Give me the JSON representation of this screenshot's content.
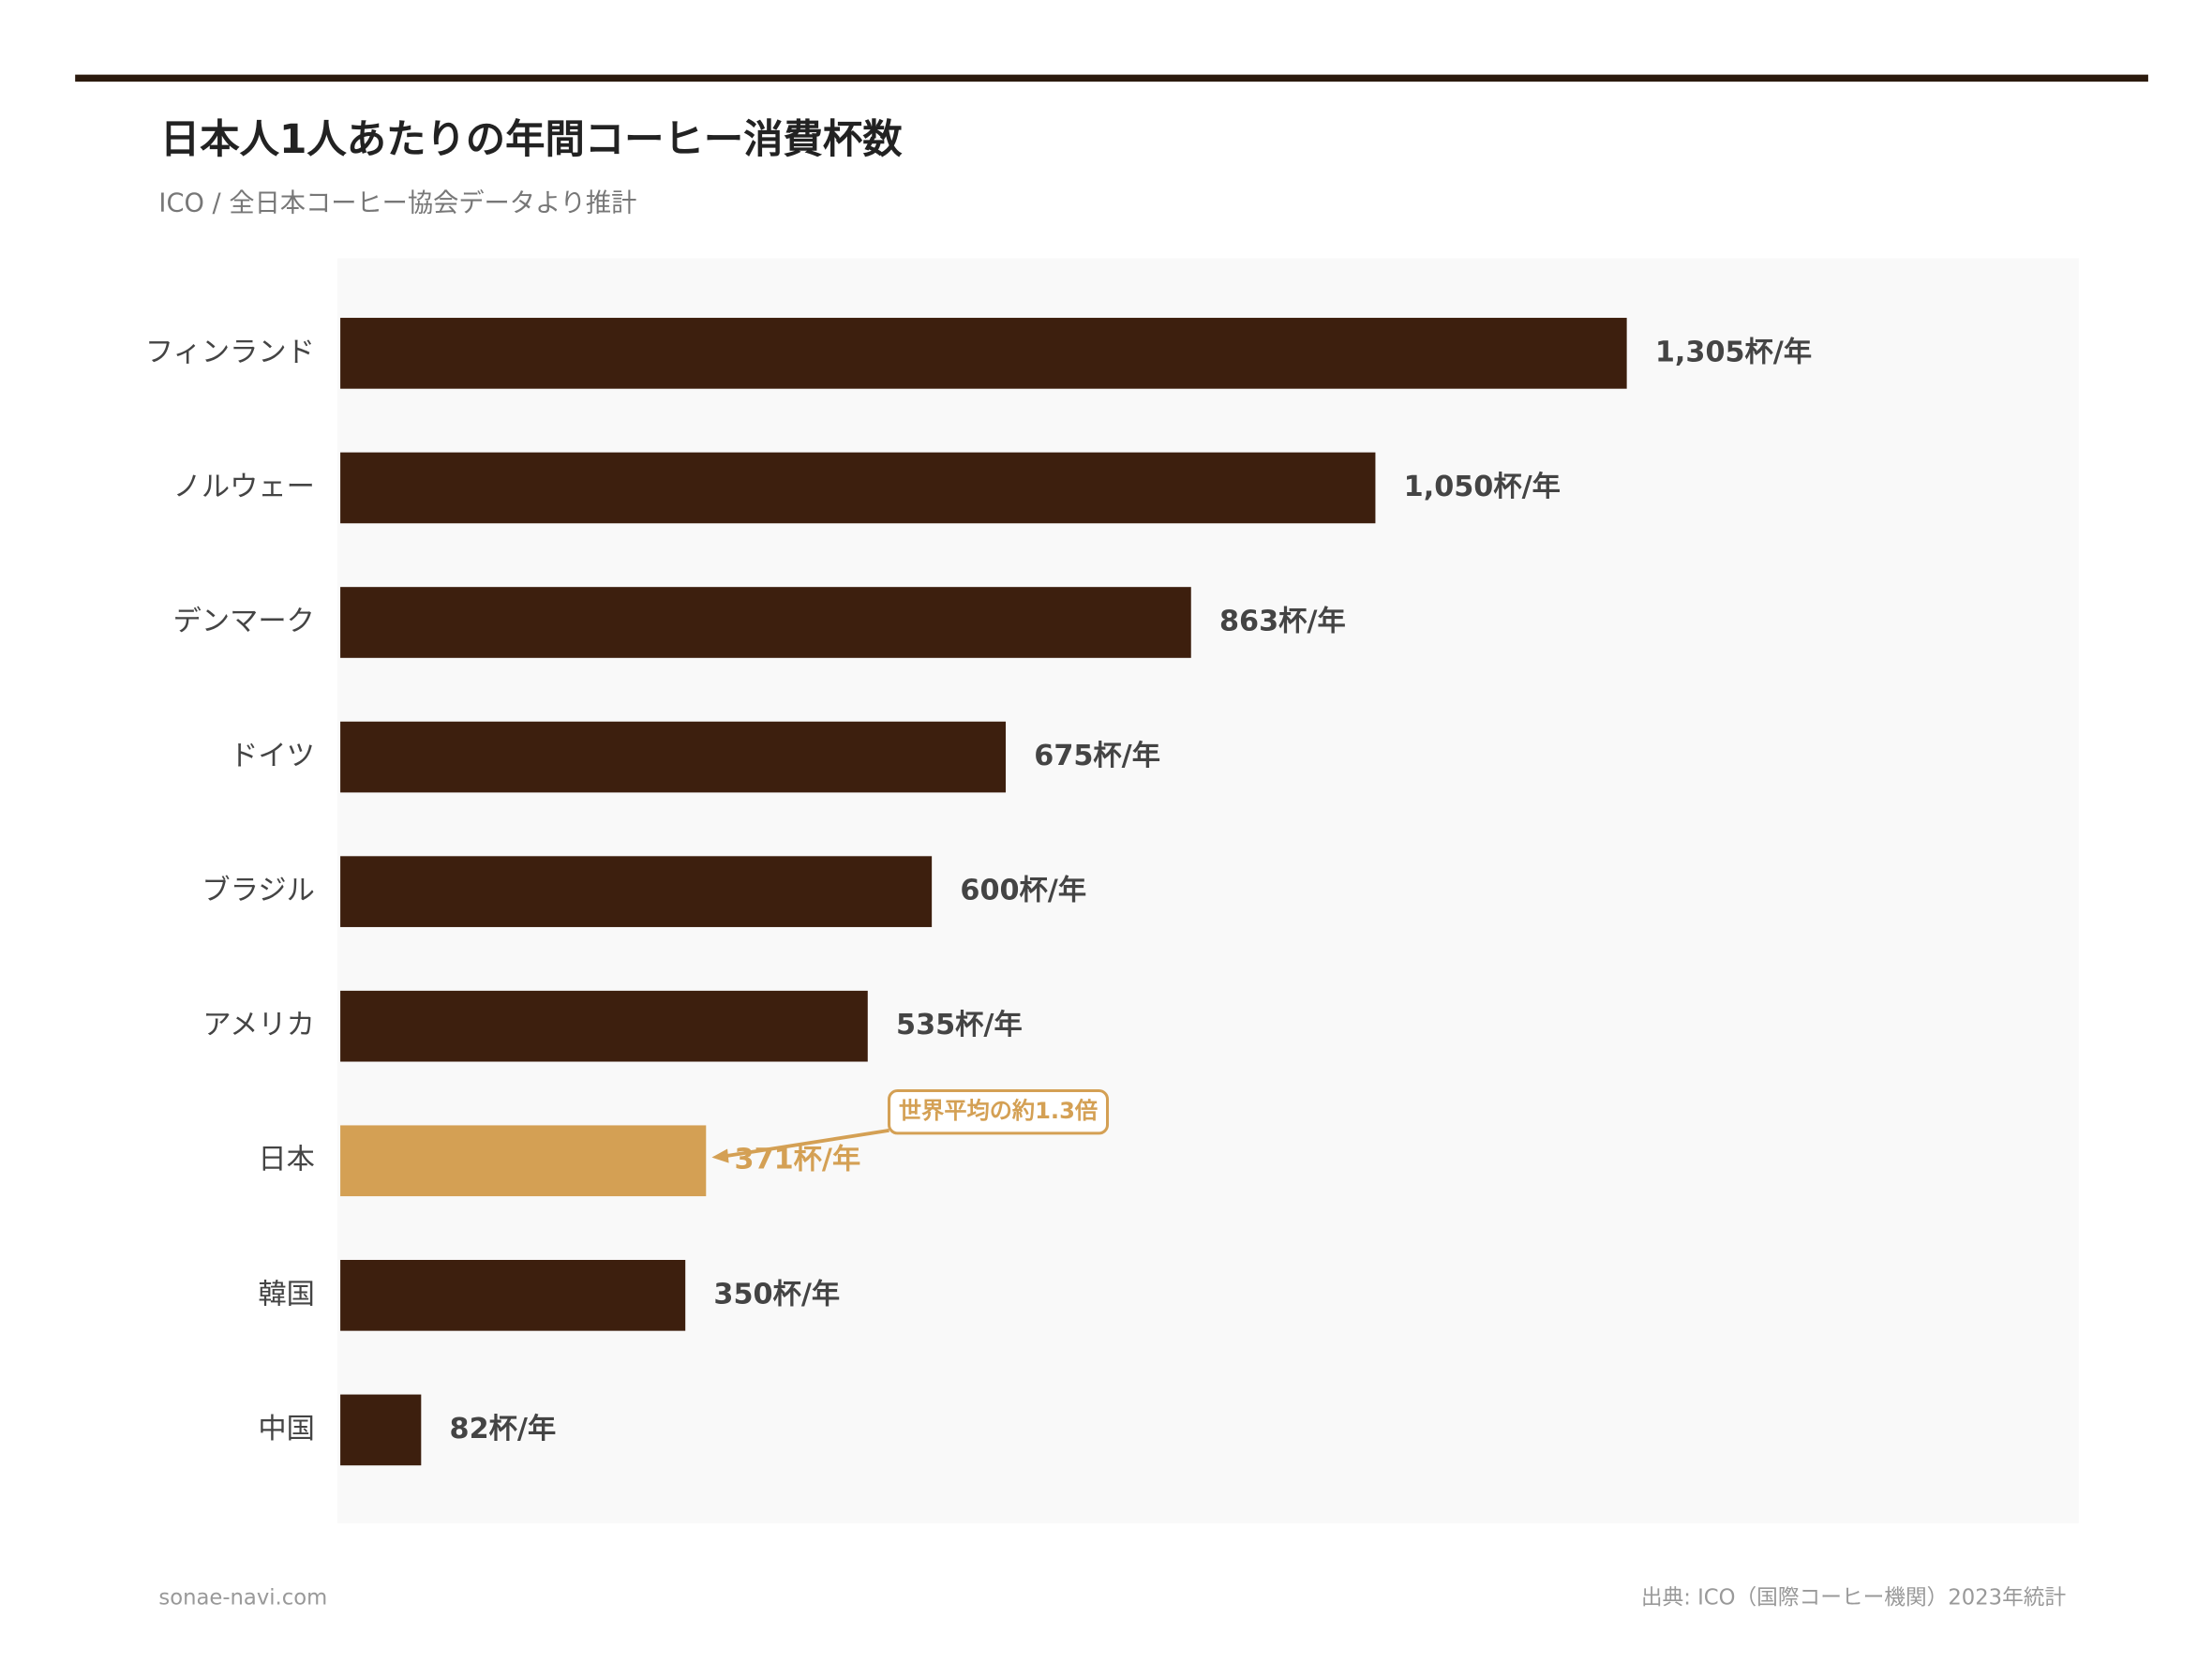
{
  "chart_data": {
    "type": "bar",
    "orientation": "horizontal",
    "title": "日本人1人あたりの年間コーヒー消費杯数",
    "subtitle": "ICO / 全日本コーヒー協会データより推計",
    "categories": [
      "フィンランド",
      "ノルウェー",
      "デンマーク",
      "ドイツ",
      "ブラジル",
      "アメリカ",
      "日本",
      "韓国",
      "中国"
    ],
    "values": [
      1305,
      1050,
      863,
      675,
      600,
      535,
      371,
      350,
      82
    ],
    "value_labels": [
      "1,305杯/年",
      "1,050杯/年",
      "863杯/年",
      "675杯/年",
      "600杯/年",
      "535杯/年",
      "371杯/年",
      "350杯/年",
      "82杯/年"
    ],
    "colors": [
      "#3d1f0e",
      "#3d1f0e",
      "#3d1f0e",
      "#3d1f0e",
      "#3d1f0e",
      "#3d1f0e",
      "#d4a054",
      "#3d1f0e",
      "#3d1f0e"
    ],
    "xlim": [
      0,
      1762
    ],
    "annotation": "世界平均の約1.3倍",
    "source": "出典: ICO（国際コーヒー機関）2023年統計",
    "site": "sonae-navi.com"
  }
}
